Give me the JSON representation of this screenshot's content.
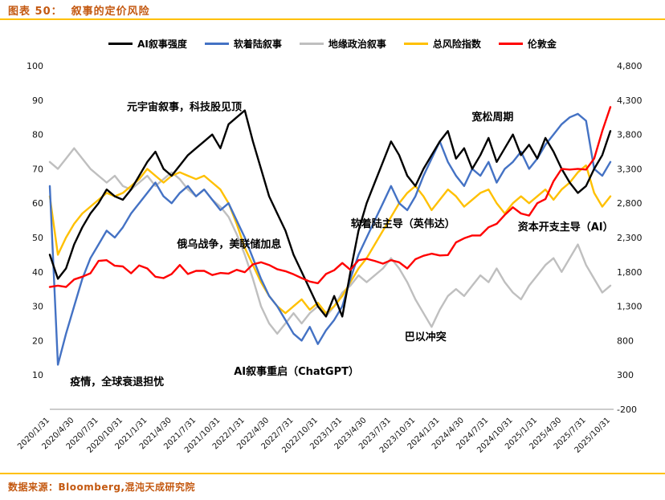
{
  "header": {
    "title": "图表 50：  叙事的定价风险"
  },
  "footer": {
    "source": "数据来源：Bloomberg,混沌天成研究院"
  },
  "colors": {
    "accent_orange": "#C45911",
    "rule_yellow": "#FFC000"
  },
  "chart_data": {
    "type": "line",
    "title": "叙事的定价风险",
    "x_count": 70,
    "x_tick_labels": [
      "2020/1/31",
      "2020/4/30",
      "2020/7/31",
      "2020/10/31",
      "2021/1/31",
      "2021/4/30",
      "2021/7/31",
      "2021/10/31",
      "2022/1/31",
      "2022/4/30",
      "2022/7/31",
      "2022/10/31",
      "2023/1/31",
      "2023/4/30",
      "2023/7/31",
      "2023/10/31",
      "2024/1/31",
      "2024/4/30",
      "2024/7/31",
      "2024/10/31",
      "2025/1/31",
      "2025/4/30",
      "2025/7/31",
      "2025/10/31"
    ],
    "left_axis": {
      "ticks": [
        100,
        90,
        80,
        70,
        60,
        50,
        40,
        30,
        20,
        10
      ],
      "range": [
        0,
        100
      ]
    },
    "right_axis": {
      "tick_labels": [
        "4,800",
        "4,300",
        "3,800",
        "3,300",
        "2,800",
        "2,300",
        "1,800",
        "1,300",
        "800",
        "300",
        "-200"
      ],
      "tick_values": [
        4800,
        4300,
        3800,
        3300,
        2800,
        2300,
        1800,
        1300,
        800,
        300,
        -200
      ],
      "range": [
        -200,
        4800
      ]
    },
    "legend_position": "top",
    "grid": false,
    "series": [
      {
        "name": "AI叙事强度",
        "color": "#000000",
        "axis": "left",
        "values": [
          45,
          38,
          41,
          48,
          53,
          57,
          60,
          64,
          62,
          61,
          64,
          68,
          72,
          75,
          70,
          68,
          71,
          74,
          76,
          78,
          80,
          76,
          83,
          85,
          87,
          78,
          70,
          62,
          57,
          52,
          45,
          40,
          35,
          30,
          27,
          33,
          27,
          40,
          52,
          60,
          66,
          72,
          78,
          74,
          68,
          65,
          70,
          74,
          78,
          81,
          73,
          76,
          70,
          74,
          79,
          72,
          76,
          80,
          74,
          77,
          73,
          79,
          75,
          70,
          66,
          63,
          65,
          70,
          74,
          81
        ]
      },
      {
        "name": "软着陆叙事",
        "color": "#4472C4",
        "axis": "left",
        "values": [
          65,
          13,
          22,
          30,
          38,
          44,
          48,
          52,
          50,
          53,
          57,
          60,
          63,
          66,
          62,
          60,
          63,
          65,
          62,
          64,
          61,
          58,
          60,
          55,
          50,
          44,
          38,
          33,
          30,
          26,
          22,
          20,
          24,
          19,
          23,
          26,
          30,
          38,
          45,
          50,
          55,
          60,
          65,
          60,
          58,
          62,
          68,
          73,
          78,
          72,
          68,
          65,
          70,
          68,
          72,
          66,
          70,
          72,
          75,
          70,
          73,
          77,
          80,
          83,
          85,
          86,
          84,
          70,
          68,
          72
        ]
      },
      {
        "name": "地缘政治叙事",
        "color": "#BFBFBF",
        "axis": "left",
        "values": [
          72,
          70,
          73,
          76,
          73,
          70,
          68,
          66,
          68,
          65,
          64,
          66,
          68,
          65,
          67,
          69,
          67,
          64,
          62,
          64,
          61,
          59,
          56,
          51,
          45,
          38,
          30,
          25,
          22,
          25,
          28,
          25,
          28,
          30,
          27,
          30,
          34,
          36,
          39,
          37,
          39,
          41,
          44,
          41,
          37,
          32,
          28,
          24,
          29,
          33,
          35,
          33,
          36,
          39,
          37,
          41,
          37,
          34,
          32,
          36,
          39,
          42,
          44,
          40,
          44,
          48,
          42,
          38,
          34,
          36
        ]
      },
      {
        "name": "总风险指数",
        "color": "#FFC000",
        "axis": "left",
        "values": [
          62,
          45,
          50,
          54,
          57,
          59,
          61,
          63,
          62,
          63,
          65,
          67,
          70,
          68,
          66,
          68,
          69,
          68,
          67,
          68,
          66,
          64,
          60,
          54,
          47,
          42,
          37,
          33,
          30,
          28,
          30,
          32,
          29,
          31,
          28,
          30,
          33,
          37,
          41,
          44,
          48,
          52,
          56,
          60,
          63,
          65,
          62,
          58,
          61,
          64,
          62,
          59,
          61,
          63,
          64,
          60,
          57,
          60,
          62,
          60,
          62,
          64,
          61,
          64,
          66,
          69,
          71,
          63,
          59,
          62
        ]
      },
      {
        "name": "伦敦金",
        "color": "#FF0000",
        "axis": "right",
        "values": [
          1580,
          1600,
          1580,
          1690,
          1730,
          1780,
          1960,
          1970,
          1890,
          1880,
          1780,
          1895,
          1850,
          1730,
          1710,
          1770,
          1900,
          1770,
          1815,
          1815,
          1755,
          1785,
          1775,
          1830,
          1795,
          1910,
          1940,
          1900,
          1840,
          1810,
          1765,
          1710,
          1660,
          1635,
          1770,
          1825,
          1930,
          1830,
          1970,
          1990,
          1960,
          1920,
          1970,
          1940,
          1850,
          1985,
          2035,
          2065,
          2040,
          2045,
          2230,
          2290,
          2330,
          2330,
          2450,
          2500,
          2630,
          2740,
          2650,
          2620,
          2800,
          2860,
          3120,
          3300,
          3290,
          3300,
          3290,
          3450,
          3850,
          4200
        ]
      }
    ],
    "annotations": [
      {
        "text": "元宇宙叙事，科技股见顶",
        "x_pct": 24,
        "y": 88
      },
      {
        "text": "俄乌战争，美联储加息",
        "x_pct": 32,
        "y": 48
      },
      {
        "text": "疫情，全球衰退担忧",
        "x_pct": 12,
        "y": 8
      },
      {
        "text": "AI叙事重启（ChatGPT）",
        "x_pct": 44,
        "y": 11
      },
      {
        "text": "软着陆主导（英伟达）",
        "x_pct": 63,
        "y": 54
      },
      {
        "text": "巴以冲突",
        "x_pct": 67,
        "y": 21
      },
      {
        "text": "宽松周期",
        "x_pct": 79,
        "y": 85
      },
      {
        "text": "资本开支主导（AI）",
        "x_pct": 92,
        "y": 53
      }
    ]
  }
}
